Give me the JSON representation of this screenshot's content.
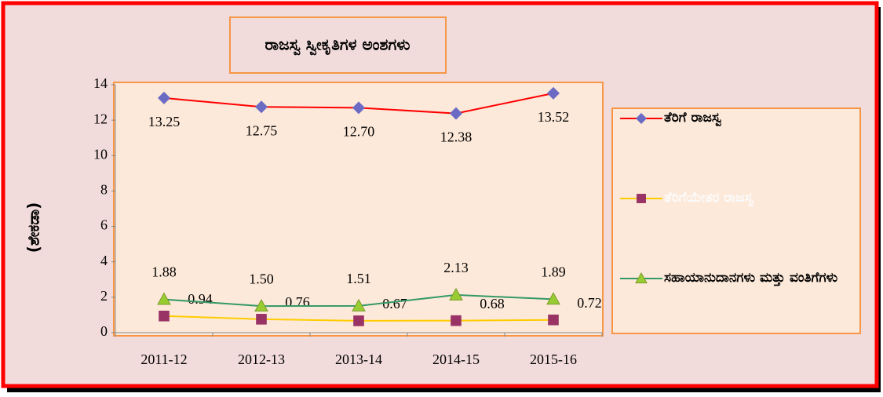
{
  "chart_data": {
    "type": "line",
    "title": "ರಾಜಸ್ವ ಸ್ವೀಕೃತಿಗಳ ಅಂಶಗಳು",
    "y_label": "(ಶೇಕಡಾ)",
    "categories": [
      "2011-12",
      "2012-13",
      "2013-14",
      "2014-15",
      "2015-16"
    ],
    "ylim": [
      0,
      14
    ],
    "yticks": [
      0,
      2,
      4,
      6,
      8,
      10,
      12,
      14
    ],
    "series": [
      {
        "name": "ತೆರಿಗೆ ರಾಜಸ್ವ",
        "color": "#ff0000",
        "marker": "diamond",
        "marker_color": "#6b6bc4",
        "values": [
          13.25,
          12.75,
          12.7,
          12.38,
          13.52
        ],
        "value_labels": [
          "13.25",
          "12.75",
          "12.70",
          "12.38",
          "13.52"
        ]
      },
      {
        "name": "ತೆರಿಗೆಯೇತರ ರಾಜಸ್ವ",
        "color": "#ffcc00",
        "marker": "square",
        "marker_color": "#993366",
        "values": [
          0.94,
          0.76,
          0.67,
          0.68,
          0.72
        ],
        "value_labels": [
          "0.94",
          "0.76",
          "0.67",
          "0.68",
          "0.72"
        ]
      },
      {
        "name": "ಸಹಾಯಾನುದಾನಗಳು ಮತ್ತು ವಂತಿಗೆಗಳು",
        "color": "#339966",
        "marker": "triangle",
        "marker_color": "#99cc33",
        "values": [
          1.88,
          1.5,
          1.51,
          2.13,
          1.89
        ],
        "value_labels": [
          "1.88",
          "1.50",
          "1.51",
          "2.13",
          "1.89"
        ]
      }
    ]
  }
}
